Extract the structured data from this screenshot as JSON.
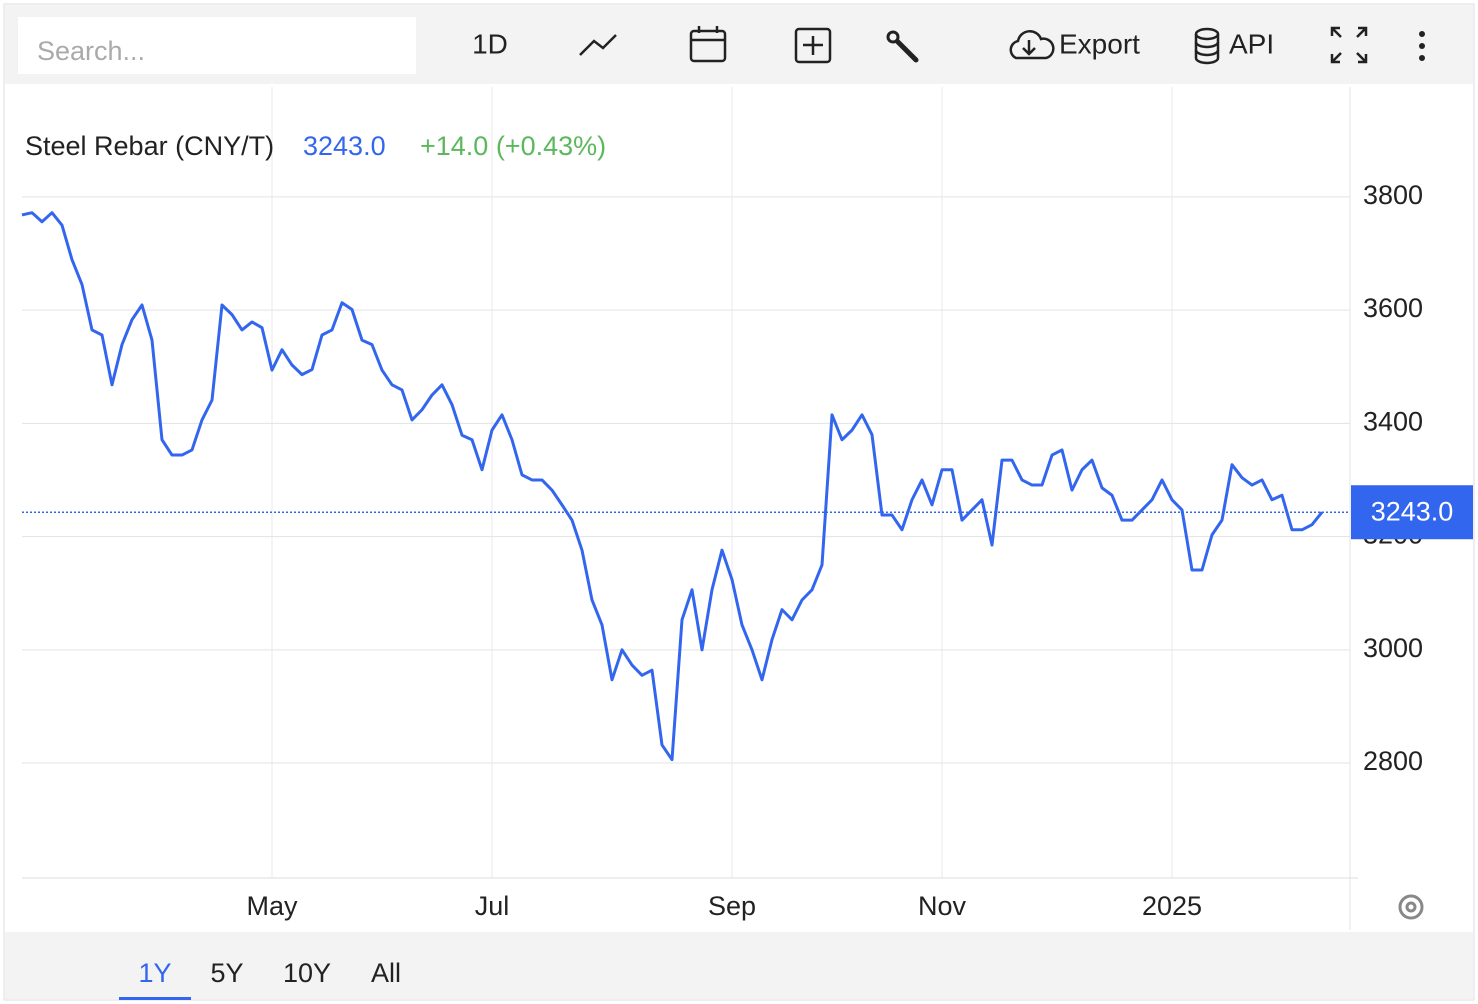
{
  "toolbar": {
    "search_placeholder": "Search...",
    "interval": "1D",
    "export": "Export",
    "api": "API"
  },
  "ranges": [
    "1Y",
    "5Y",
    "10Y",
    "All"
  ],
  "chart_data": {
    "type": "line",
    "change": "+14.0 (+0.43%)",
    "last_price": {
      "value": 3243,
      "label": "3243.0"
    },
    "categories": [
      null,
      null,
      null,
      null,
      null,
      null,
      null,
      null,
      null,
      null,
      null,
      null,
      null,
      null,
      null,
      null,
      null,
      null,
      null,
      null,
      null,
      null,
      null,
      null,
      null,
      "May",
      null,
      null,
      null,
      null,
      null,
      null,
      null,
      null,
      null,
      null,
      null,
      null,
      null,
      null,
      null,
      null,
      null,
      null,
      null,
      null,
      null,
      "Jul",
      null,
      null,
      null,
      null,
      null,
      null,
      null,
      null,
      null,
      null,
      null,
      null,
      null,
      null,
      null,
      null,
      null,
      null,
      null,
      null,
      null,
      null,
      null,
      "Sep",
      null,
      null,
      null,
      null,
      null,
      null,
      null,
      null,
      null,
      null,
      null,
      null,
      null,
      null,
      null,
      null,
      null,
      null,
      null,
      null,
      "Nov",
      null,
      null,
      null,
      null,
      null,
      null,
      null,
      null,
      null,
      null,
      null,
      null,
      null,
      null,
      null,
      null,
      null,
      null,
      null,
      null,
      null,
      null,
      "2025",
      null,
      null,
      null,
      null,
      null,
      null,
      null,
      null,
      null,
      null,
      null,
      null,
      null,
      null,
      null
    ],
    "series": [
      {
        "name": "Steel Rebar (CNY/T)",
        "color": "#3366ee",
        "values": [
          3768,
          3772,
          3756,
          3772,
          3750,
          3689,
          3645,
          3565,
          3556,
          3468,
          3539,
          3583,
          3609,
          3547,
          3371,
          3344,
          3344,
          3353,
          3406,
          3441,
          3609,
          3592,
          3565,
          3579,
          3569,
          3494,
          3530,
          3503,
          3486,
          3495,
          3556,
          3565,
          3613,
          3601,
          3547,
          3539,
          3494,
          3468,
          3459,
          3406,
          3424,
          3450,
          3468,
          3433,
          3379,
          3371,
          3318,
          3388,
          3415,
          3371,
          3309,
          3300,
          3300,
          3282,
          3256,
          3229,
          3176,
          3088,
          3044,
          2947,
          3000,
          2973,
          2955,
          2964,
          2832,
          2806,
          3053,
          3106,
          3000,
          3106,
          3176,
          3124,
          3044,
          3000,
          2947,
          3018,
          3071,
          3053,
          3088,
          3106,
          3150,
          3415,
          3371,
          3388,
          3415,
          3380,
          3238,
          3238,
          3212,
          3265,
          3300,
          3256,
          3318,
          3318,
          3229,
          3247,
          3265,
          3185,
          3335,
          3335,
          3300,
          3291,
          3291,
          3344,
          3353,
          3282,
          3318,
          3335,
          3286,
          3273,
          3229,
          3229,
          3247,
          3265,
          3300,
          3265,
          3247,
          3141,
          3141,
          3203,
          3229,
          3327,
          3304,
          3291,
          3300,
          3265,
          3273,
          3212,
          3212,
          3221,
          3243
        ]
      }
    ],
    "ylim": [
      2597,
      3994
    ],
    "yticks": [
      2800,
      3000,
      3200,
      3400,
      3600,
      3800
    ],
    "grid": true
  }
}
